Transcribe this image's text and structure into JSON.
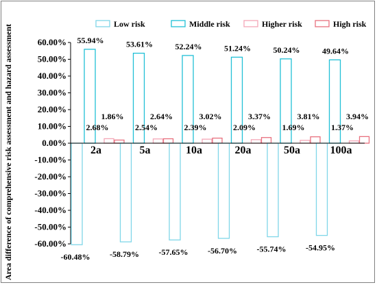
{
  "chart_data": {
    "type": "bar",
    "title": "",
    "xlabel": "",
    "ylabel": "Area  difference of comprehensive risk assessment and hazard assessment",
    "categories": [
      "2a",
      "5a",
      "10a",
      "20a",
      "50a",
      "100a"
    ],
    "series": [
      {
        "name": "Low risk",
        "values": [
          -60.48,
          -58.79,
          -57.65,
          -56.7,
          -55.74,
          -54.95
        ],
        "labels": [
          "-60.48%",
          "-58.79%",
          "-57.65%",
          "-56.70%",
          "-55.74%",
          "-54.95%"
        ],
        "color": "#7fd6e8"
      },
      {
        "name": "Middle risk",
        "values": [
          55.94,
          53.61,
          52.24,
          51.24,
          50.24,
          49.64
        ],
        "labels": [
          "55.94%",
          "53.61%",
          "52.24%",
          "51.24%",
          "50.24%",
          "49.64%"
        ],
        "color": "#1fbfd6"
      },
      {
        "name": "Higher risk",
        "values": [
          2.68,
          2.54,
          2.39,
          2.09,
          1.69,
          1.37
        ],
        "labels": [
          "2.68%",
          "2.54%",
          "2.39%",
          "2.09%",
          "1.69%",
          "1.37%"
        ],
        "color": "#f4a6b6"
      },
      {
        "name": "High risk",
        "values": [
          1.86,
          2.64,
          3.02,
          3.37,
          3.81,
          3.94
        ],
        "labels": [
          "1.86%",
          "2.64%",
          "3.02%",
          "3.37%",
          "3.81%",
          "3.94%"
        ],
        "color": "#e8707e"
      }
    ],
    "yticks": [
      60,
      50,
      40,
      30,
      20,
      10,
      0,
      -10,
      -20,
      -30,
      -40,
      -50,
      -60
    ],
    "ytick_labels": [
      "60.00%",
      "50.00%",
      "40.00%",
      "30.00%",
      "20.00%",
      "10.00%",
      "0.00%",
      "-10.00%",
      "-20.00%",
      "-30.00%",
      "-40.00%",
      "-50.00%",
      "-60.00%"
    ],
    "ylim": [
      -60,
      60
    ],
    "grid": false,
    "legend_position": "top"
  }
}
